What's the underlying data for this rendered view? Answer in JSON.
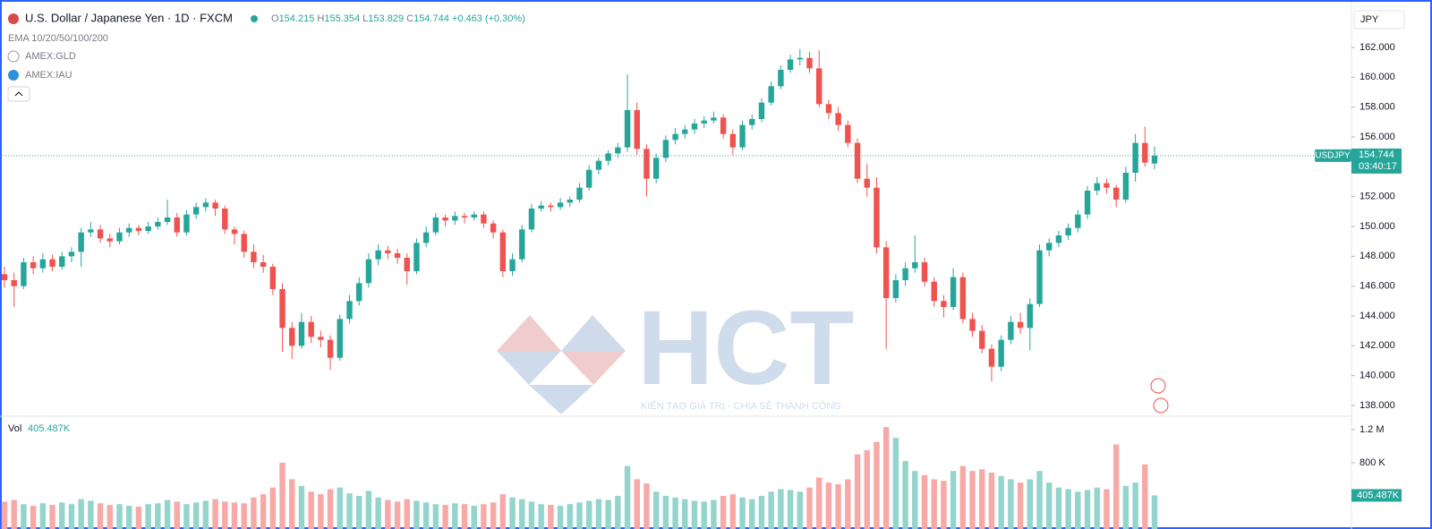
{
  "header": {
    "title": "U.S. Dollar / Japanese Yen · 1D · FXCM",
    "o_label": "O",
    "h_label": "H",
    "l_label": "L",
    "c_label": "C",
    "change": "+0.463 (+0.30%)"
  },
  "indicators": [
    "EMA 10/20/50/100/200",
    "AMEX:GLD",
    "AMEX:IAU"
  ],
  "currency": "JPY",
  "watermark": {
    "logo": "HCT",
    "slogan": "KIẾN TẠO GIÁ TRỊ - CHIA SẺ THÀNH CÔNG"
  },
  "chart_data": [
    {
      "type": "candlestick",
      "symbol": "USDJPY",
      "countdown": "03:40:17",
      "up_color": "#26a69a",
      "down_color": "#ef5350",
      "grid": false,
      "ylim": [
        137.4,
        164.7
      ],
      "yticks": [
        {
          "value": 138,
          "label": "138.000"
        },
        {
          "value": 140,
          "label": "140.000"
        },
        {
          "value": 142,
          "label": "142.000"
        },
        {
          "value": 144,
          "label": "144.000"
        },
        {
          "value": 146,
          "label": "146.000"
        },
        {
          "value": 148,
          "label": "148.000"
        },
        {
          "value": 150,
          "label": "150.000"
        },
        {
          "value": 152,
          "label": "152.000"
        },
        {
          "value": 154,
          "label": "154.000"
        },
        {
          "value": 156,
          "label": "156.000"
        },
        {
          "value": 158,
          "label": "158.000"
        },
        {
          "value": 160,
          "label": "160.000"
        },
        {
          "value": 162,
          "label": "162.000"
        }
      ],
      "ohlc": [
        [
          146.8,
          147.3,
          145.9,
          146.4
        ],
        [
          146.4,
          146.9,
          144.6,
          146.0
        ],
        [
          146.0,
          147.9,
          145.8,
          147.6
        ],
        [
          147.6,
          148.0,
          146.8,
          147.2
        ],
        [
          147.2,
          148.2,
          146.9,
          147.8
        ],
        [
          147.8,
          148.1,
          147.0,
          147.3
        ],
        [
          147.3,
          148.3,
          147.1,
          148.0
        ],
        [
          148.0,
          148.6,
          147.6,
          148.3
        ],
        [
          148.3,
          149.9,
          147.3,
          149.6
        ],
        [
          149.6,
          150.3,
          149.3,
          149.8
        ],
        [
          149.8,
          150.1,
          148.9,
          149.2
        ],
        [
          149.2,
          149.5,
          148.6,
          149.0
        ],
        [
          149.0,
          149.9,
          148.8,
          149.6
        ],
        [
          149.6,
          150.2,
          149.3,
          149.9
        ],
        [
          149.9,
          150.1,
          149.4,
          149.7
        ],
        [
          149.7,
          150.3,
          149.5,
          150.0
        ],
        [
          150.0,
          150.6,
          149.8,
          150.3
        ],
        [
          150.3,
          151.8,
          150.1,
          150.6
        ],
        [
          150.6,
          150.9,
          149.3,
          149.6
        ],
        [
          149.6,
          151.1,
          149.4,
          150.8
        ],
        [
          150.8,
          151.6,
          150.5,
          151.3
        ],
        [
          151.3,
          151.9,
          151.0,
          151.6
        ],
        [
          151.6,
          151.8,
          150.7,
          151.2
        ],
        [
          151.2,
          151.4,
          149.5,
          149.8
        ],
        [
          149.8,
          150.0,
          148.8,
          149.5
        ],
        [
          149.5,
          149.7,
          147.9,
          148.3
        ],
        [
          148.3,
          148.8,
          147.2,
          147.6
        ],
        [
          147.6,
          148.1,
          146.9,
          147.3
        ],
        [
          147.3,
          147.5,
          145.4,
          145.8
        ],
        [
          145.8,
          146.2,
          141.6,
          143.2
        ],
        [
          143.2,
          143.6,
          141.1,
          142.0
        ],
        [
          142.0,
          144.2,
          141.8,
          143.6
        ],
        [
          143.6,
          144.0,
          142.2,
          142.6
        ],
        [
          142.6,
          143.0,
          141.9,
          142.4
        ],
        [
          142.4,
          142.7,
          140.4,
          141.2
        ],
        [
          141.2,
          144.1,
          141.0,
          143.8
        ],
        [
          143.8,
          145.4,
          143.5,
          145.0
        ],
        [
          145.0,
          146.6,
          144.7,
          146.2
        ],
        [
          146.2,
          148.2,
          145.9,
          147.8
        ],
        [
          147.8,
          148.8,
          147.4,
          148.4
        ],
        [
          148.4,
          148.7,
          147.8,
          148.2
        ],
        [
          148.2,
          148.5,
          147.5,
          147.9
        ],
        [
          147.9,
          148.2,
          146.1,
          147.0
        ],
        [
          147.0,
          149.2,
          146.8,
          148.9
        ],
        [
          148.9,
          150.0,
          148.6,
          149.6
        ],
        [
          149.6,
          150.9,
          149.4,
          150.6
        ],
        [
          150.6,
          150.8,
          150.0,
          150.4
        ],
        [
          150.4,
          151.0,
          150.1,
          150.7
        ],
        [
          150.7,
          150.9,
          150.2,
          150.6
        ],
        [
          150.6,
          151.0,
          150.4,
          150.8
        ],
        [
          150.8,
          151.0,
          149.9,
          150.2
        ],
        [
          150.2,
          150.4,
          149.2,
          149.6
        ],
        [
          149.6,
          149.8,
          146.6,
          147.0
        ],
        [
          147.0,
          148.2,
          146.7,
          147.8
        ],
        [
          147.8,
          150.1,
          147.6,
          149.8
        ],
        [
          149.8,
          151.5,
          149.6,
          151.2
        ],
        [
          151.2,
          151.7,
          151.0,
          151.4
        ],
        [
          151.4,
          151.6,
          151.0,
          151.3
        ],
        [
          151.3,
          151.9,
          151.1,
          151.6
        ],
        [
          151.6,
          152.0,
          151.3,
          151.8
        ],
        [
          151.8,
          152.9,
          151.6,
          152.6
        ],
        [
          152.6,
          154.1,
          152.4,
          153.8
        ],
        [
          153.8,
          154.6,
          153.5,
          154.4
        ],
        [
          154.4,
          155.1,
          154.1,
          154.9
        ],
        [
          154.9,
          155.6,
          154.6,
          155.3
        ],
        [
          155.3,
          160.2,
          155.0,
          157.8
        ],
        [
          157.8,
          158.3,
          154.8,
          155.2
        ],
        [
          155.2,
          155.5,
          152.0,
          153.2
        ],
        [
          153.2,
          154.9,
          152.9,
          154.6
        ],
        [
          154.6,
          156.1,
          154.3,
          155.8
        ],
        [
          155.8,
          156.6,
          155.5,
          156.2
        ],
        [
          156.2,
          156.8,
          155.9,
          156.5
        ],
        [
          156.5,
          157.2,
          156.2,
          156.9
        ],
        [
          156.9,
          157.4,
          156.6,
          157.1
        ],
        [
          157.1,
          157.7,
          156.9,
          157.3
        ],
        [
          157.3,
          157.5,
          155.9,
          156.2
        ],
        [
          156.2,
          156.5,
          154.8,
          155.3
        ],
        [
          155.3,
          157.1,
          155.1,
          156.8
        ],
        [
          156.8,
          157.5,
          156.5,
          157.2
        ],
        [
          157.2,
          158.6,
          157.0,
          158.3
        ],
        [
          158.3,
          159.7,
          158.1,
          159.4
        ],
        [
          159.4,
          160.8,
          159.2,
          160.5
        ],
        [
          160.5,
          161.5,
          160.3,
          161.2
        ],
        [
          161.2,
          161.9,
          160.8,
          161.3
        ],
        [
          161.3,
          161.7,
          160.3,
          160.6
        ],
        [
          160.6,
          161.8,
          158.0,
          158.2
        ],
        [
          158.2,
          158.5,
          157.2,
          157.6
        ],
        [
          157.6,
          158.0,
          156.4,
          156.8
        ],
        [
          156.8,
          157.1,
          155.3,
          155.6
        ],
        [
          155.6,
          155.9,
          152.9,
          153.2
        ],
        [
          153.2,
          154.2,
          152.0,
          152.6
        ],
        [
          152.6,
          153.3,
          148.2,
          148.6
        ],
        [
          148.6,
          149.0,
          141.8,
          145.2
        ],
        [
          145.2,
          146.8,
          144.9,
          146.4
        ],
        [
          146.4,
          147.6,
          146.0,
          147.2
        ],
        [
          147.2,
          149.4,
          146.9,
          147.6
        ],
        [
          147.6,
          147.9,
          146.0,
          146.3
        ],
        [
          146.3,
          146.6,
          144.6,
          145.0
        ],
        [
          145.0,
          145.4,
          143.9,
          144.6
        ],
        [
          144.6,
          147.2,
          144.4,
          146.6
        ],
        [
          146.6,
          146.9,
          143.5,
          143.8
        ],
        [
          143.8,
          144.2,
          142.6,
          143.0
        ],
        [
          143.0,
          143.4,
          141.5,
          141.8
        ],
        [
          141.8,
          142.1,
          139.6,
          140.6
        ],
        [
          140.6,
          142.7,
          140.3,
          142.4
        ],
        [
          142.4,
          144.0,
          142.1,
          143.6
        ],
        [
          143.6,
          144.2,
          142.8,
          143.2
        ],
        [
          143.2,
          145.2,
          141.7,
          144.8
        ],
        [
          144.8,
          148.8,
          144.6,
          148.4
        ],
        [
          148.4,
          149.2,
          148.0,
          148.9
        ],
        [
          148.9,
          149.7,
          148.6,
          149.4
        ],
        [
          149.4,
          150.2,
          149.1,
          149.9
        ],
        [
          149.9,
          151.1,
          149.6,
          150.8
        ],
        [
          150.8,
          152.7,
          150.5,
          152.4
        ],
        [
          152.4,
          153.3,
          152.1,
          152.9
        ],
        [
          152.9,
          153.2,
          152.2,
          152.6
        ],
        [
          152.6,
          152.8,
          151.3,
          151.8
        ],
        [
          151.8,
          154.0,
          151.6,
          153.6
        ],
        [
          153.6,
          156.2,
          153.0,
          155.6
        ],
        [
          155.6,
          156.7,
          154.0,
          154.281
        ],
        [
          154.215,
          155.354,
          153.829,
          154.744
        ]
      ]
    },
    {
      "type": "bar",
      "title": "Vol",
      "last_label": "405.487K",
      "up_color": "#93d4cc",
      "down_color": "#f6a9a6",
      "ylim": [
        0,
        1350000
      ],
      "yticks": [
        {
          "value": 800000,
          "label": "800 K"
        },
        {
          "value": 1200000,
          "label": "1.2 M"
        }
      ],
      "values": [
        330000,
        350000,
        300000,
        280000,
        310000,
        290000,
        320000,
        300000,
        360000,
        340000,
        310000,
        290000,
        300000,
        280000,
        270000,
        300000,
        310000,
        350000,
        330000,
        300000,
        320000,
        340000,
        360000,
        330000,
        320000,
        310000,
        380000,
        420000,
        500000,
        800000,
        600000,
        520000,
        450000,
        420000,
        480000,
        500000,
        430000,
        400000,
        460000,
        380000,
        350000,
        330000,
        360000,
        340000,
        320000,
        300000,
        290000,
        310000,
        300000,
        280000,
        300000,
        320000,
        420000,
        380000,
        360000,
        330000,
        300000,
        290000,
        280000,
        300000,
        320000,
        340000,
        360000,
        350000,
        400000,
        760000,
        600000,
        550000,
        450000,
        400000,
        380000,
        360000,
        340000,
        330000,
        350000,
        400000,
        420000,
        380000,
        360000,
        400000,
        450000,
        480000,
        470000,
        450000,
        500000,
        620000,
        560000,
        540000,
        600000,
        900000,
        950000,
        1050000,
        1230000,
        1100000,
        820000,
        700000,
        650000,
        600000,
        580000,
        700000,
        760000,
        700000,
        720000,
        680000,
        640000,
        600000,
        560000,
        600000,
        700000,
        560000,
        500000,
        480000,
        450000,
        470000,
        500000,
        480000,
        1020000,
        520000,
        560000,
        780000,
        405487
      ]
    }
  ]
}
